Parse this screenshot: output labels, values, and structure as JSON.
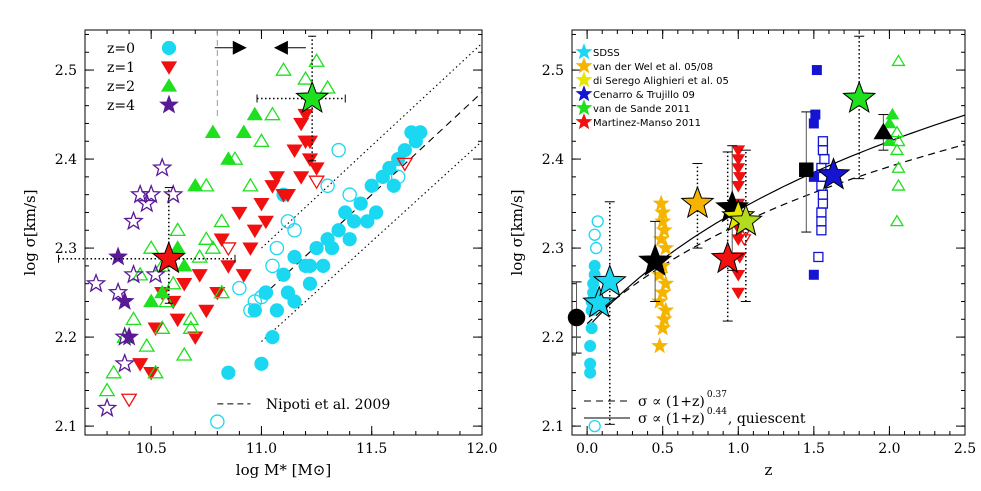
{
  "colors": {
    "cyan": "#1ad7f2",
    "red": "#f01010",
    "green": "#1ee01e",
    "purple": "#5a1a96",
    "orange": "#f5b400",
    "blue": "#1414d2",
    "black": "#000000"
  },
  "chart_data": [
    {
      "type": "scatter",
      "xlabel": "log M* [M⊙]",
      "ylabel": "log σ[km/s]",
      "xlim": [
        10.2,
        12.0
      ],
      "ylim": [
        2.09,
        2.545
      ],
      "xticks": [
        10.5,
        11.0,
        11.5,
        12.0
      ],
      "yticks": [
        2.1,
        2.2,
        2.3,
        2.4,
        2.5
      ],
      "xtick_labels": [
        "10.5",
        "11.0",
        "11.5",
        "12.0"
      ],
      "ytick_labels": [
        "2.1",
        "2.2",
        "2.3",
        "2.4",
        "2.5"
      ],
      "legend_position": "top-left",
      "legend": [
        {
          "label": "z=0",
          "marker": "circle",
          "color": "cyan"
        },
        {
          "label": "z=1",
          "marker": "triangle-down",
          "color": "red"
        },
        {
          "label": "z=2",
          "marker": "triangle-up",
          "color": "green"
        },
        {
          "label": "z=4",
          "marker": "star",
          "color": "purple"
        }
      ],
      "annotation": "Nipoti et al. 2009",
      "lines": [
        {
          "style": "dashed",
          "x": [
            11.0,
            12.0
          ],
          "y": [
            2.245,
            2.475
          ]
        },
        {
          "style": "dotted",
          "x": [
            11.0,
            12.0
          ],
          "y": [
            2.3,
            2.53
          ]
        },
        {
          "style": "dotted",
          "x": [
            11.0,
            12.0
          ],
          "y": [
            2.195,
            2.42
          ]
        }
      ],
      "series": [
        {
          "name": "z=0",
          "marker": "circle",
          "color": "cyan",
          "filled": true,
          "x": [
            10.85,
            10.97,
            11.0,
            11.02,
            11.05,
            11.07,
            11.1,
            11.12,
            11.15,
            11.2,
            11.22,
            11.25,
            11.28,
            11.3,
            11.32,
            11.35,
            11.38,
            11.4,
            11.42,
            11.45,
            11.48,
            11.5,
            11.52,
            11.55,
            11.58,
            11.6,
            11.62,
            11.65,
            11.68,
            11.7,
            11.72,
            11.15,
            11.22,
            11.1
          ],
          "y": [
            2.16,
            2.23,
            2.17,
            2.25,
            2.2,
            2.23,
            2.27,
            2.25,
            2.24,
            2.28,
            2.26,
            2.3,
            2.28,
            2.31,
            2.3,
            2.32,
            2.34,
            2.31,
            2.33,
            2.35,
            2.33,
            2.37,
            2.34,
            2.38,
            2.39,
            2.37,
            2.4,
            2.41,
            2.43,
            2.42,
            2.43,
            2.29,
            2.28,
            2.36
          ]
        },
        {
          "name": "z=0 open",
          "marker": "circle",
          "color": "cyan",
          "filled": false,
          "x": [
            10.8,
            10.9,
            10.95,
            10.97,
            11.0,
            11.02,
            11.05,
            11.07,
            11.12,
            11.15,
            11.3,
            11.35,
            11.4,
            11.62
          ],
          "y": [
            2.105,
            2.255,
            2.23,
            2.24,
            2.245,
            2.25,
            2.28,
            2.3,
            2.33,
            2.32,
            2.37,
            2.41,
            2.36,
            2.38
          ]
        },
        {
          "name": "z=1",
          "marker": "triangle-down",
          "color": "red",
          "filled": true,
          "x": [
            10.45,
            10.5,
            10.52,
            10.55,
            10.6,
            10.62,
            10.65,
            10.7,
            10.72,
            10.75,
            10.8,
            10.82,
            10.85,
            10.9,
            10.92,
            10.95,
            10.97,
            11.0,
            11.02,
            11.05,
            11.07,
            11.1,
            11.12,
            11.15,
            11.18,
            11.2,
            11.22,
            11.25,
            11.18,
            11.22,
            11.2
          ],
          "y": [
            2.17,
            2.16,
            2.21,
            2.25,
            2.24,
            2.22,
            2.26,
            2.2,
            2.27,
            2.23,
            2.25,
            2.31,
            2.28,
            2.34,
            2.27,
            2.3,
            2.32,
            2.35,
            2.33,
            2.37,
            2.38,
            2.36,
            2.36,
            2.41,
            2.38,
            2.42,
            2.4,
            2.39,
            2.44,
            2.42,
            2.45
          ]
        },
        {
          "name": "z=1 open",
          "marker": "triangle-down",
          "color": "red",
          "filled": false,
          "x": [
            10.4,
            10.85,
            11.25,
            11.65
          ],
          "y": [
            2.13,
            2.3,
            2.375,
            2.395
          ]
        },
        {
          "name": "z=2",
          "marker": "triangle-up",
          "color": "green",
          "filled": true,
          "x": [
            10.5,
            10.55,
            10.62,
            10.7,
            10.78,
            10.85,
            10.92,
            10.97,
            10.65
          ],
          "y": [
            2.24,
            2.25,
            2.3,
            2.37,
            2.43,
            2.4,
            2.43,
            2.45,
            2.28
          ]
        },
        {
          "name": "z=2 open",
          "marker": "triangle-up",
          "color": "green",
          "filled": false,
          "x": [
            10.3,
            10.33,
            10.38,
            10.42,
            10.45,
            10.48,
            10.52,
            10.55,
            10.57,
            10.6,
            10.62,
            10.65,
            10.68,
            10.72,
            10.75,
            10.78,
            10.82,
            10.88,
            10.95,
            11.0,
            11.05,
            11.1,
            11.2,
            11.25,
            11.3,
            10.82,
            10.75,
            10.68,
            10.55,
            10.5
          ],
          "y": [
            2.14,
            2.16,
            2.2,
            2.22,
            2.27,
            2.19,
            2.16,
            2.28,
            2.24,
            2.26,
            2.32,
            2.18,
            2.21,
            2.29,
            2.37,
            2.3,
            2.33,
            2.4,
            2.37,
            2.42,
            2.45,
            2.5,
            2.49,
            2.51,
            2.48,
            2.25,
            2.31,
            2.22,
            2.21,
            2.3
          ]
        },
        {
          "name": "z=4",
          "marker": "star",
          "color": "purple",
          "filled": true,
          "x": [
            10.35,
            10.38,
            10.4
          ],
          "y": [
            2.29,
            2.24,
            2.2
          ]
        },
        {
          "name": "z=4 open",
          "marker": "star",
          "color": "purple",
          "filled": false,
          "x": [
            10.25,
            10.3,
            10.35,
            10.38,
            10.42,
            10.45,
            10.48,
            10.5,
            10.52,
            10.55,
            10.6,
            10.38,
            10.42
          ],
          "y": [
            2.26,
            2.12,
            2.25,
            2.17,
            2.33,
            2.36,
            2.35,
            2.36,
            2.27,
            2.39,
            2.36,
            2.2,
            2.27
          ]
        }
      ],
      "big_stars": [
        {
          "x": 10.58,
          "y": 2.288,
          "color": "red",
          "xerr": [
            0.5,
            0.3
          ],
          "yerr": [
            0.05,
            0.08
          ]
        },
        {
          "x": 11.23,
          "y": 2.468,
          "color": "green",
          "xerr": [
            0.25,
            0.15
          ],
          "yerr": [
            0.07,
            0.07
          ]
        }
      ],
      "arrows": [
        {
          "x": 10.87,
          "y": 2.525,
          "direction": "right"
        },
        {
          "x": 11.12,
          "y": 2.525,
          "direction": "left"
        }
      ]
    },
    {
      "type": "scatter",
      "xlabel": "z",
      "ylabel": "log σ[km/s]",
      "xlim": [
        -0.1,
        2.5
      ],
      "ylim": [
        2.09,
        2.545
      ],
      "xticks": [
        0.0,
        0.5,
        1.0,
        1.5,
        2.0,
        2.5
      ],
      "yticks": [
        2.1,
        2.2,
        2.3,
        2.4,
        2.5
      ],
      "xtick_labels": [
        "0.0",
        "0.5",
        "1.0",
        "1.5",
        "2.0",
        "2.5"
      ],
      "ytick_labels": [
        "2.1",
        "2.2",
        "2.3",
        "2.4",
        "2.5"
      ],
      "legend_position": "top-left",
      "legend": [
        {
          "label": "SDSS",
          "color": "cyan"
        },
        {
          "label": "van der Wel et al. 05/08",
          "color": "orange"
        },
        {
          "label": "di Serego Alighieri et al. 05",
          "color": "yellow"
        },
        {
          "label": "Cenarro & Trujillo 09",
          "color": "blue"
        },
        {
          "label": "van de Sande 2011",
          "color": "green"
        },
        {
          "label": "Martinez-Manso 2011",
          "color": "red"
        }
      ],
      "fit_legend": [
        {
          "style": "dashed",
          "text": "σ ∝ (1+z)",
          "exponent": "0.37",
          "suffix": ""
        },
        {
          "style": "solid",
          "text": "σ ∝ (1+z)",
          "exponent": "0.44",
          "suffix": ", quiescent"
        }
      ],
      "curves": [
        {
          "style": "dashed",
          "exponent": 0.37,
          "y0": 2.215
        },
        {
          "style": "solid",
          "exponent": 0.44,
          "y0": 2.21
        }
      ],
      "points": [
        {
          "group": "SDSS",
          "marker": "circle",
          "color": "cyan",
          "filled": true,
          "x": [
            0.02,
            0.02,
            0.02,
            0.03,
            0.03,
            0.04,
            0.04,
            0.05,
            0.05,
            0.03
          ],
          "y": [
            2.16,
            2.17,
            2.19,
            2.21,
            2.23,
            2.25,
            2.26,
            2.27,
            2.28,
            2.24
          ]
        },
        {
          "group": "SDSS open",
          "marker": "circle",
          "color": "cyan",
          "filled": false,
          "x": [
            0.05,
            0.05,
            0.06,
            0.07
          ],
          "y": [
            2.1,
            2.315,
            2.3,
            2.33
          ]
        },
        {
          "group": "vdW",
          "marker": "star",
          "color": "orange",
          "filled": true,
          "x": [
            0.48,
            0.5,
            0.52,
            0.48,
            0.5,
            0.52,
            0.48,
            0.5,
            0.52,
            0.49,
            0.51,
            0.5,
            0.5,
            0.49,
            0.51
          ],
          "y": [
            2.19,
            2.21,
            2.23,
            2.24,
            2.25,
            2.26,
            2.27,
            2.28,
            2.3,
            2.31,
            2.32,
            2.33,
            2.34,
            2.35,
            2.22
          ]
        },
        {
          "group": "MM",
          "marker": "triangle-down",
          "color": "red",
          "filled": true,
          "x": [
            1.0,
            1.0,
            1.01,
            1.0,
            1.01,
            1.0,
            1.0,
            1.01,
            1.0,
            1.0,
            1.0,
            1.01
          ],
          "y": [
            2.25,
            2.27,
            2.29,
            2.31,
            2.33,
            2.35,
            2.37,
            2.38,
            2.39,
            2.4,
            2.41,
            2.32
          ]
        },
        {
          "group": "MM open",
          "marker": "triangle-down",
          "color": "red",
          "filled": false,
          "x": [
            1.04,
            1.05,
            1.06
          ],
          "y": [
            2.31,
            2.32,
            2.33
          ]
        },
        {
          "group": "CT filled",
          "marker": "square",
          "color": "blue",
          "filled": true,
          "x": [
            1.5,
            1.5,
            1.51,
            1.52,
            1.5
          ],
          "y": [
            2.27,
            2.44,
            2.45,
            2.5,
            2.38
          ]
        },
        {
          "group": "CT open",
          "marker": "square",
          "color": "blue",
          "filled": false,
          "x": [
            1.53,
            1.55,
            1.55,
            1.56,
            1.56,
            1.55,
            1.56,
            1.55,
            1.57,
            1.56,
            1.56,
            1.55
          ],
          "y": [
            2.29,
            2.33,
            2.34,
            2.35,
            2.36,
            2.37,
            2.38,
            2.39,
            2.4,
            2.41,
            2.42,
            2.32
          ]
        },
        {
          "group": "vdS filled",
          "marker": "triangle-up",
          "color": "green",
          "filled": true,
          "x": [
            2.0,
            2.0,
            2.02
          ],
          "y": [
            2.42,
            2.44,
            2.45
          ]
        },
        {
          "group": "vdS open",
          "marker": "triangle-up",
          "color": "green",
          "filled": false,
          "x": [
            2.05,
            2.06,
            2.06,
            2.05,
            2.06,
            2.05,
            2.06
          ],
          "y": [
            2.33,
            2.37,
            2.39,
            2.41,
            2.42,
            2.43,
            2.51
          ]
        }
      ],
      "big_symbols": [
        {
          "marker": "circle",
          "color": "black",
          "x": -0.07,
          "y": 2.222,
          "yerr": [
            0.04,
            0.04
          ]
        },
        {
          "marker": "star",
          "color": "cyan",
          "x": 0.08,
          "y": 2.238,
          "yerr": [
            0.0,
            0.0
          ]
        },
        {
          "marker": "star",
          "color": "cyan",
          "x": 0.15,
          "y": 2.262,
          "yerr": [
            0.16,
            0.09
          ],
          "dotted": true
        },
        {
          "marker": "star",
          "color": "black",
          "x": 0.45,
          "y": 2.285,
          "yerr": [
            0.045,
            0.045
          ]
        },
        {
          "marker": "star",
          "color": "orange",
          "x": 0.73,
          "y": 2.35,
          "yerr": [
            0.05,
            0.045
          ],
          "dotted": true
        },
        {
          "marker": "star",
          "color": "black",
          "x": 0.96,
          "y": 2.345,
          "yerr": [
            0.07,
            0.07
          ]
        },
        {
          "marker": "star",
          "color": "red",
          "x": 0.93,
          "y": 2.288,
          "yerr": [
            0.07,
            0.12
          ],
          "dotted": true
        },
        {
          "marker": "star",
          "color": "yellow",
          "x": 1.0,
          "y": 2.335,
          "yerr": [
            0.0,
            0.0
          ]
        },
        {
          "marker": "star",
          "color": "yellowgreen",
          "x": 1.05,
          "y": 2.33,
          "yerr": [
            0.09,
            0.08
          ],
          "dotted": true
        },
        {
          "marker": "square",
          "color": "black",
          "x": 1.45,
          "y": 2.388,
          "yerr": [
            0.07,
            0.065
          ]
        },
        {
          "marker": "star",
          "color": "blue",
          "x": 1.63,
          "y": 2.382,
          "yerr": [
            0.0,
            0.0
          ]
        },
        {
          "marker": "star",
          "color": "green",
          "x": 1.8,
          "y": 2.468,
          "yerr": [
            0.09,
            0.07
          ],
          "dotted": true
        },
        {
          "marker": "triangle-up",
          "color": "black",
          "x": 1.96,
          "y": 2.43,
          "yerr": [
            0.02,
            0.02
          ]
        }
      ]
    }
  ]
}
